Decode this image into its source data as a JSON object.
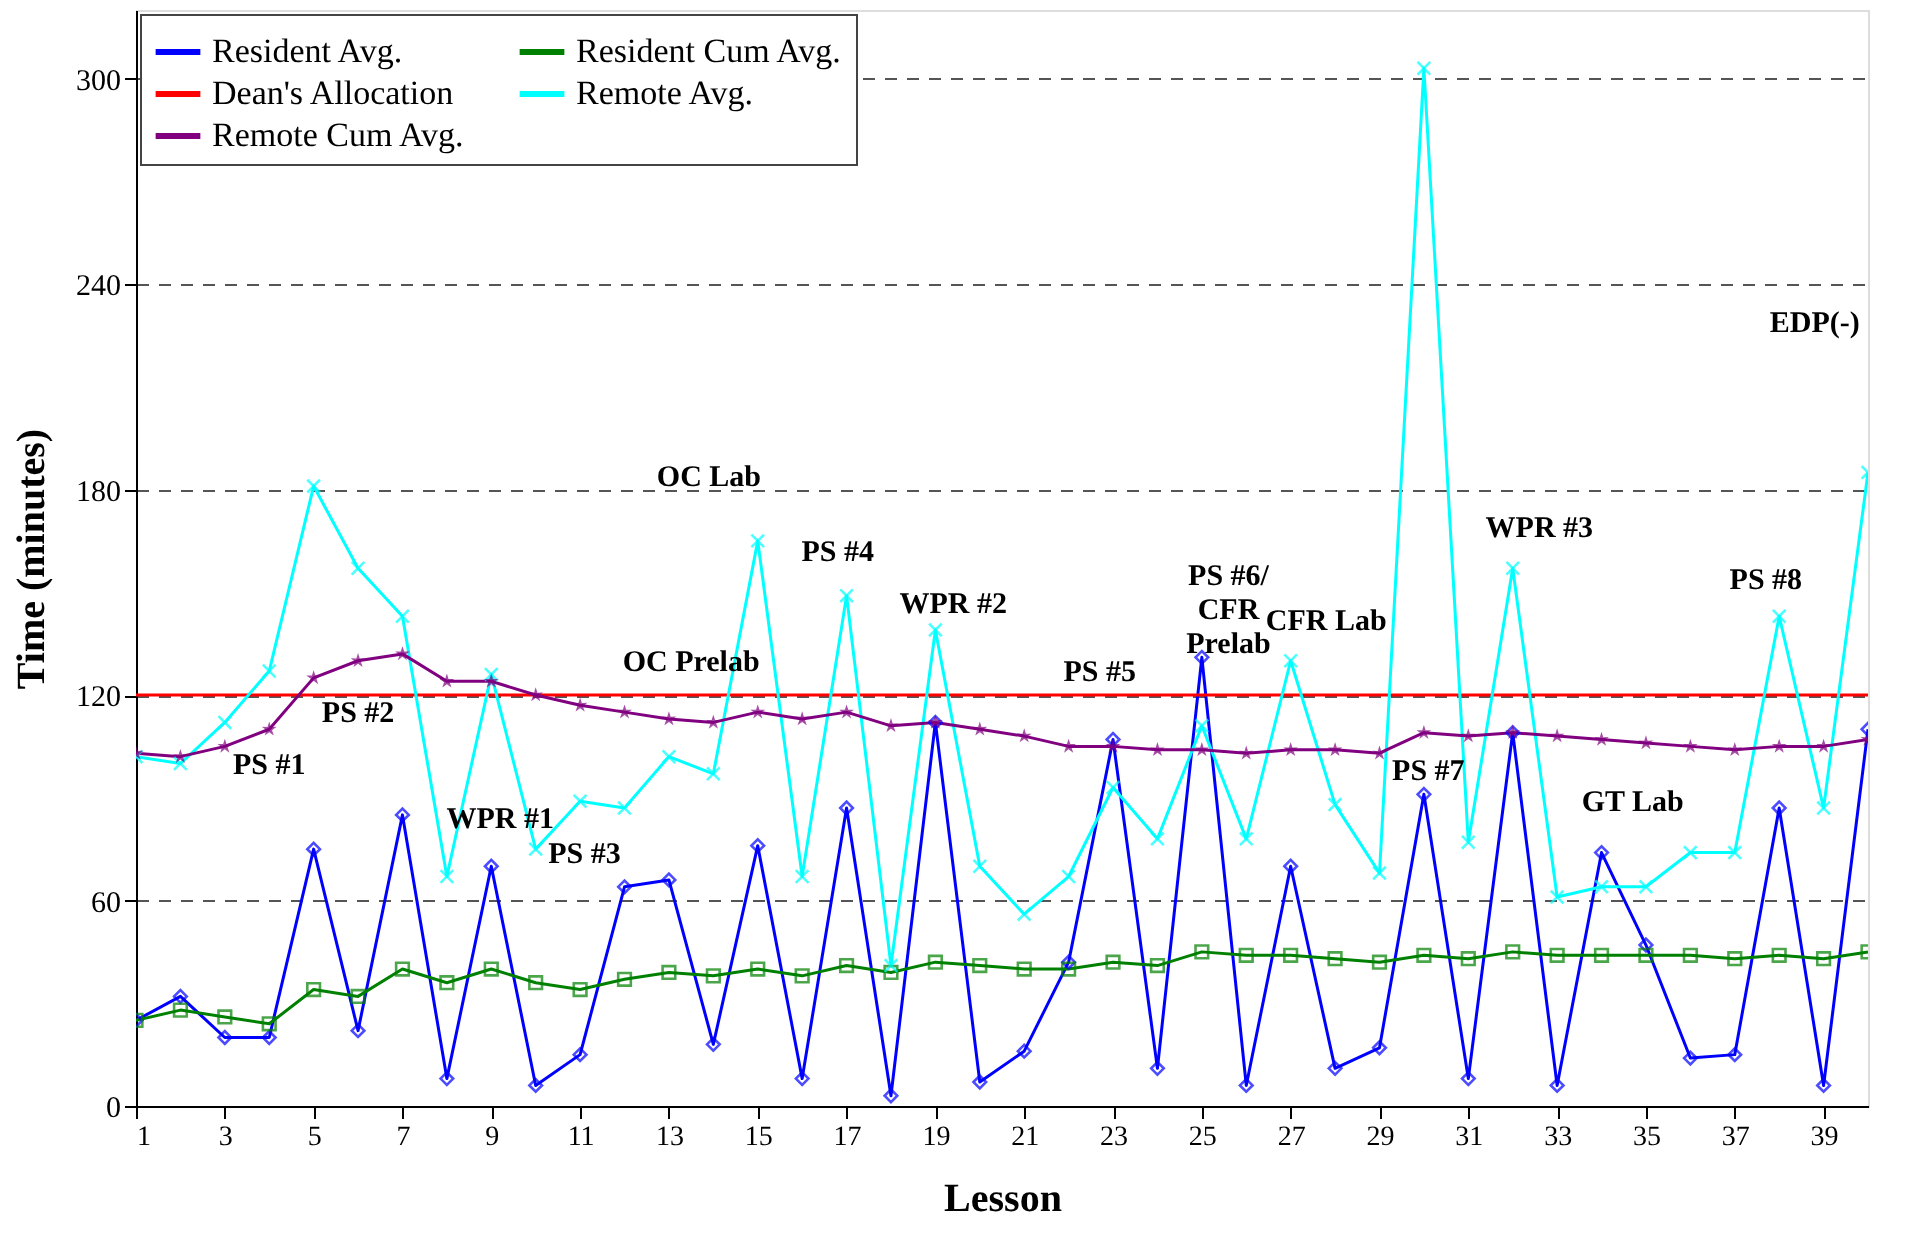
{
  "chart_data": {
    "type": "line",
    "xlabel": "Lesson",
    "ylabel": "Time (minutes)",
    "x": [
      1,
      2,
      3,
      4,
      5,
      6,
      7,
      8,
      9,
      10,
      11,
      12,
      13,
      14,
      15,
      16,
      17,
      18,
      19,
      20,
      21,
      22,
      23,
      24,
      25,
      26,
      27,
      28,
      29,
      30,
      31,
      32,
      33,
      34,
      35,
      36,
      37,
      38,
      39,
      40
    ],
    "series": [
      {
        "name": "Resident Avg.",
        "color": "#0000ff",
        "marker": "diamond",
        "values": [
          25,
          32,
          20,
          20,
          75,
          22,
          85,
          8,
          70,
          6,
          15,
          64,
          66,
          18,
          76,
          8,
          87,
          3,
          112,
          7,
          16,
          42,
          107,
          11,
          131,
          6,
          70,
          11,
          17,
          91,
          8,
          109,
          6,
          74,
          47,
          14,
          15,
          87,
          6,
          110
        ]
      },
      {
        "name": "Resident Cum Avg.",
        "color": "#008000",
        "marker": "square",
        "values": [
          25,
          28,
          26,
          24,
          34,
          32,
          40,
          36,
          40,
          36,
          34,
          37,
          39,
          38,
          40,
          38,
          41,
          39,
          42,
          41,
          40,
          40,
          42,
          41,
          45,
          44,
          44,
          43,
          42,
          44,
          43,
          45,
          44,
          44,
          44,
          44,
          43,
          44,
          43,
          45
        ]
      },
      {
        "name": "Dean's Allocation",
        "color": "#ff0000",
        "marker": "none",
        "values": [
          120,
          120,
          120,
          120,
          120,
          120,
          120,
          120,
          120,
          120,
          120,
          120,
          120,
          120,
          120,
          120,
          120,
          120,
          120,
          120,
          120,
          120,
          120,
          120,
          120,
          120,
          120,
          120,
          120,
          120,
          120,
          120,
          120,
          120,
          120,
          120,
          120,
          120,
          120,
          120
        ]
      },
      {
        "name": "Remote Avg.",
        "color": "#00ffff",
        "marker": "cross",
        "values": [
          102,
          100,
          112,
          127,
          181,
          157,
          143,
          67,
          126,
          75,
          89,
          87,
          102,
          97,
          165,
          67,
          149,
          41,
          139,
          70,
          56,
          67,
          93,
          78,
          111,
          78,
          130,
          88,
          68,
          303,
          77,
          157,
          61,
          64,
          64,
          74,
          74,
          143,
          87,
          185
        ]
      },
      {
        "name": "Remote Cum Avg.",
        "color": "#800080",
        "marker": "star",
        "values": [
          103,
          102,
          105,
          110,
          125,
          130,
          132,
          124,
          124,
          120,
          117,
          115,
          113,
          112,
          115,
          113,
          115,
          111,
          112,
          110,
          108,
          105,
          105,
          104,
          104,
          103,
          104,
          104,
          103,
          109,
          108,
          109,
          108,
          107,
          106,
          105,
          104,
          105,
          105,
          107
        ]
      }
    ],
    "xlim": [
      1,
      40
    ],
    "xticks": [
      1,
      3,
      5,
      7,
      9,
      11,
      13,
      15,
      17,
      19,
      21,
      23,
      25,
      27,
      29,
      31,
      33,
      35,
      37,
      39
    ],
    "ylim": [
      0,
      320
    ],
    "yticks": [
      0,
      60,
      120,
      180,
      240,
      300
    ],
    "grid": "y",
    "legend": "top left",
    "annotations": [
      "PS #1",
      "PS #2",
      "WPR #1",
      "PS #3",
      "OC Prelab",
      "OC Lab",
      "PS #4",
      "WPR #2",
      "PS #5",
      "PS #6/\nCFR\nPrelab",
      "CFR Lab",
      "PS #7",
      "WPR #3",
      "GT Lab",
      "PS #8",
      "EDP(-)"
    ]
  }
}
